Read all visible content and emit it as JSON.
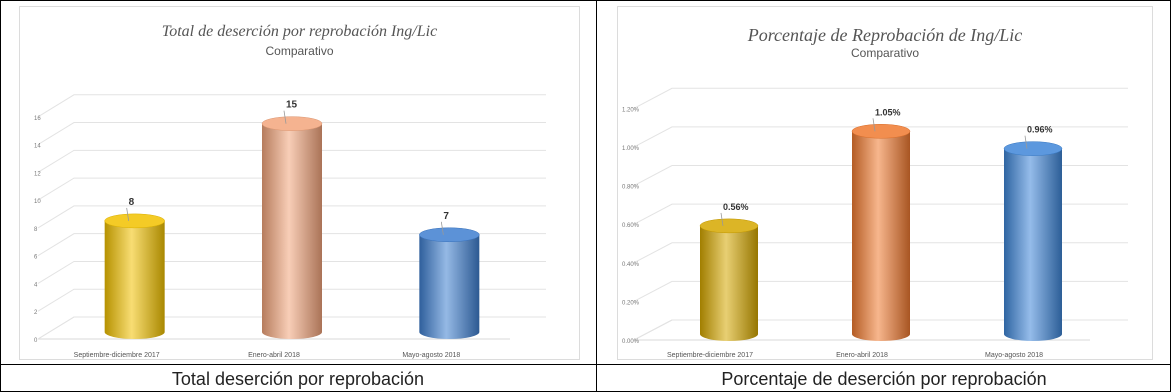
{
  "chart_data": [
    {
      "type": "bar",
      "title": "Total de deserción por reprobación Ing/Lic",
      "subtitle": "Comparativo",
      "categories": [
        "Septiembre-diciembre 2017",
        "Enero-abril 2018",
        "Mayo-agosto 2018"
      ],
      "values": [
        8,
        15,
        7
      ],
      "data_labels": [
        "8",
        "15",
        "7"
      ],
      "ylim": [
        0,
        18
      ],
      "yticks": [
        0,
        2,
        4,
        6,
        8,
        10,
        12,
        14,
        16
      ],
      "ytick_labels": [
        "0",
        "2",
        "4",
        "6",
        "8",
        "10",
        "12",
        "14",
        "16"
      ],
      "grid": true,
      "colors": [
        "#f2c200",
        "#f3a57c",
        "#3f7fd0"
      ]
    },
    {
      "type": "bar",
      "title": "Porcentaje de Reprobación de Ing/Lic",
      "subtitle": "Comparativo",
      "categories": [
        "Septiembre-diciembre 2017",
        "Enero-abril 2018",
        "Mayo-agosto 2018"
      ],
      "values": [
        0.56,
        1.05,
        0.96
      ],
      "data_labels": [
        "0.56%",
        "1.05%",
        "0.96%"
      ],
      "ylim": [
        0,
        1.3
      ],
      "yticks": [
        0,
        0.2,
        0.4,
        0.6,
        0.8,
        1.0,
        1.2
      ],
      "ytick_labels": [
        "0.00%",
        "0.20%",
        "0.40%",
        "0.60%",
        "0.80%",
        "1.00%",
        "1.20%"
      ],
      "grid": true,
      "colors": [
        "#d6a800",
        "#f07a30",
        "#3f86d8"
      ]
    }
  ],
  "captions": {
    "left": "Total deserción por reprobación",
    "right": "Porcentaje de deserción por reprobación"
  }
}
